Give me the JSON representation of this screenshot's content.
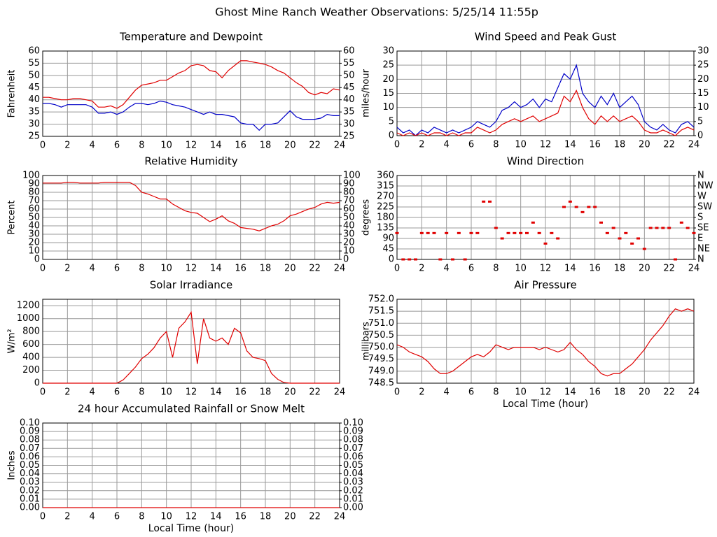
{
  "title": "Ghost Mine Ranch Weather Observations: 5/25/14 11:55p",
  "chart_data": [
    {
      "type": "line",
      "title": "Temperature and Dewpoint",
      "ylabel": "Fahrenheit",
      "x": [
        0,
        0.5,
        1,
        1.5,
        2,
        2.5,
        3,
        3.5,
        4,
        4.5,
        5,
        5.5,
        6,
        6.5,
        7,
        7.5,
        8,
        8.5,
        9,
        9.5,
        10,
        10.5,
        11,
        11.5,
        12,
        12.5,
        13,
        13.5,
        14,
        14.5,
        15,
        15.5,
        16,
        16.5,
        17,
        17.5,
        18,
        18.5,
        19,
        19.5,
        20,
        20.5,
        21,
        21.5,
        22,
        22.5,
        23,
        23.5,
        24
      ],
      "series": [
        {
          "color": "#e00000",
          "values": [
            41,
            41,
            40.5,
            40,
            40,
            40.5,
            40.5,
            40,
            39.5,
            37,
            37,
            37.5,
            36.5,
            38,
            41,
            44,
            46,
            46.5,
            47,
            48,
            48,
            49.5,
            51,
            52,
            54,
            54.5,
            54,
            52,
            51.5,
            49,
            52,
            54,
            56,
            56,
            55.5,
            55,
            54.5,
            53.5,
            52,
            51,
            49,
            47,
            45.5,
            43,
            42,
            43,
            42.5,
            44.5,
            44
          ]
        },
        {
          "color": "#0000c8",
          "values": [
            38.5,
            38.5,
            38,
            37,
            38,
            38,
            38,
            38,
            37,
            34.5,
            34.5,
            35,
            34,
            35,
            37,
            38.5,
            38.5,
            38,
            38.5,
            39.5,
            39,
            38,
            37.5,
            37,
            36,
            35,
            34,
            35,
            34,
            34,
            33.5,
            33,
            30.5,
            30,
            30,
            27.5,
            30,
            30,
            30.5,
            33,
            35.5,
            33,
            32,
            32,
            32,
            32.5,
            34,
            33.5,
            33.5
          ]
        }
      ],
      "xlim": [
        0,
        24
      ],
      "xticks": [
        0,
        2,
        4,
        6,
        8,
        10,
        12,
        14,
        16,
        18,
        20,
        22,
        24
      ],
      "ylim": [
        25,
        60
      ],
      "yticks": [
        25,
        30,
        35,
        40,
        45,
        50,
        55,
        60
      ],
      "y2lim": [
        25,
        60
      ],
      "y2ticks": [
        25,
        30,
        35,
        40,
        45,
        50,
        55,
        60
      ],
      "grid": true
    },
    {
      "type": "line",
      "title": "Wind Speed and Peak Gust",
      "ylabel": "miles/hour",
      "x": [
        0,
        0.5,
        1,
        1.5,
        2,
        2.5,
        3,
        3.5,
        4,
        4.5,
        5,
        5.5,
        6,
        6.5,
        7,
        7.5,
        8,
        8.5,
        9,
        9.5,
        10,
        10.5,
        11,
        11.5,
        12,
        12.5,
        13,
        13.5,
        14,
        14.5,
        15,
        15.5,
        16,
        16.5,
        17,
        17.5,
        18,
        18.5,
        19,
        19.5,
        20,
        20.5,
        21,
        21.5,
        22,
        22.5,
        23,
        23.5,
        24
      ],
      "series": [
        {
          "color": "#0000c8",
          "values": [
            3,
            1,
            2,
            0,
            2,
            1,
            3,
            2,
            1,
            2,
            1,
            2,
            3,
            5,
            4,
            3,
            5,
            9,
            10,
            12,
            10,
            11,
            13,
            10,
            13,
            12,
            17,
            22,
            20,
            25,
            15,
            12,
            10,
            14,
            11,
            15,
            10,
            12,
            14,
            11,
            5,
            3,
            2,
            4,
            2,
            1,
            4,
            5,
            3
          ]
        },
        {
          "color": "#e00000",
          "values": [
            1,
            0,
            1,
            0,
            1,
            0,
            1,
            1,
            0,
            1,
            0,
            1,
            1,
            3,
            2,
            1,
            2,
            4,
            5,
            6,
            5,
            6,
            7,
            5,
            6,
            7,
            8,
            14,
            12,
            16,
            10,
            6,
            4,
            7,
            5,
            7,
            5,
            6,
            7,
            5,
            2,
            1,
            1,
            2,
            1,
            0,
            2,
            3,
            2
          ]
        }
      ],
      "xlim": [
        0,
        24
      ],
      "xticks": [
        0,
        2,
        4,
        6,
        8,
        10,
        12,
        14,
        16,
        18,
        20,
        22,
        24
      ],
      "ylim": [
        0,
        30
      ],
      "yticks": [
        0,
        5,
        10,
        15,
        20,
        25,
        30
      ],
      "y2lim": [
        0,
        30
      ],
      "y2ticks": [
        0,
        5,
        10,
        15,
        20,
        25,
        30
      ],
      "grid": true
    },
    {
      "type": "line",
      "title": "Relative Humidity",
      "ylabel": "Percent",
      "x": [
        0,
        0.5,
        1,
        1.5,
        2,
        2.5,
        3,
        3.5,
        4,
        4.5,
        5,
        5.5,
        6,
        6.5,
        7,
        7.5,
        8,
        8.5,
        9,
        9.5,
        10,
        10.5,
        11,
        11.5,
        12,
        12.5,
        13,
        13.5,
        14,
        14.5,
        15,
        15.5,
        16,
        16.5,
        17,
        17.5,
        18,
        18.5,
        19,
        19.5,
        20,
        20.5,
        21,
        21.5,
        22,
        22.5,
        23,
        23.5,
        24
      ],
      "series": [
        {
          "color": "#e00000",
          "values": [
            91,
            91,
            91,
            91,
            92,
            92,
            91,
            91,
            91,
            91,
            92,
            92,
            92,
            92,
            92,
            88,
            80,
            78,
            75,
            72,
            72,
            66,
            62,
            58,
            56,
            55,
            50,
            45,
            48,
            52,
            46,
            43,
            38,
            37,
            36,
            34,
            37,
            40,
            42,
            46,
            52,
            54,
            57,
            60,
            62,
            66,
            68,
            67,
            68
          ]
        }
      ],
      "xlim": [
        0,
        24
      ],
      "xticks": [
        0,
        2,
        4,
        6,
        8,
        10,
        12,
        14,
        16,
        18,
        20,
        22,
        24
      ],
      "ylim": [
        0,
        100
      ],
      "yticks": [
        0,
        10,
        20,
        30,
        40,
        50,
        60,
        70,
        80,
        90,
        100
      ],
      "y2lim": [
        0,
        100
      ],
      "y2ticks": [
        0,
        10,
        20,
        30,
        40,
        50,
        60,
        70,
        80,
        90,
        100
      ],
      "grid": true
    },
    {
      "type": "scatter",
      "title": "Wind Direction",
      "ylabel": "degrees",
      "x": [
        0,
        0.5,
        1,
        1.5,
        2,
        2.5,
        3,
        3.5,
        4,
        4.5,
        5,
        5.5,
        6,
        6.5,
        7,
        7.5,
        8,
        8.5,
        9,
        9.5,
        10,
        10.5,
        11,
        11.5,
        12,
        12.5,
        13,
        13.5,
        14,
        14.5,
        15,
        15.5,
        16,
        16.5,
        17,
        17.5,
        18,
        18.5,
        19,
        19.5,
        20,
        20.5,
        21,
        21.5,
        22,
        22.5,
        23,
        23.5,
        24
      ],
      "series": [
        {
          "color": "#e00000",
          "values": [
            113,
            0,
            0,
            0,
            113,
            113,
            113,
            0,
            113,
            0,
            113,
            0,
            113,
            113,
            248,
            248,
            135,
            90,
            113,
            113,
            113,
            113,
            158,
            113,
            68,
            113,
            90,
            225,
            248,
            225,
            203,
            225,
            225,
            158,
            113,
            135,
            90,
            113,
            68,
            90,
            45,
            135,
            135,
            135,
            135,
            0,
            158,
            135,
            113
          ]
        }
      ],
      "xlim": [
        0,
        24
      ],
      "xticks": [
        0,
        2,
        4,
        6,
        8,
        10,
        12,
        14,
        16,
        18,
        20,
        22,
        24
      ],
      "ylim": [
        0,
        360
      ],
      "yticks": [
        0,
        45,
        90,
        135,
        180,
        225,
        270,
        315,
        360
      ],
      "y2lim": [
        0,
        360
      ],
      "y2ticks": [
        {
          "value": 0,
          "label": "N"
        },
        {
          "value": 45,
          "label": "NE"
        },
        {
          "value": 90,
          "label": "E"
        },
        {
          "value": 135,
          "label": "SE"
        },
        {
          "value": 180,
          "label": "S"
        },
        {
          "value": 225,
          "label": "SW"
        },
        {
          "value": 270,
          "label": "W"
        },
        {
          "value": 315,
          "label": "NW"
        },
        {
          "value": 360,
          "label": "N"
        }
      ],
      "grid": true
    },
    {
      "type": "line",
      "title": "Solar Irradiance",
      "ylabel": "W/m²",
      "x": [
        0,
        0.5,
        1,
        1.5,
        2,
        2.5,
        3,
        3.5,
        4,
        4.5,
        5,
        5.5,
        6,
        6.5,
        7,
        7.5,
        8,
        8.5,
        9,
        9.5,
        10,
        10.5,
        11,
        11.5,
        12,
        12.5,
        13,
        13.5,
        14,
        14.5,
        15,
        15.5,
        16,
        16.5,
        17,
        17.5,
        18,
        18.5,
        19,
        19.5,
        20,
        20.5,
        21,
        21.5,
        22,
        22.5,
        23,
        23.5,
        24
      ],
      "series": [
        {
          "color": "#e00000",
          "values": [
            0,
            0,
            0,
            0,
            0,
            0,
            0,
            0,
            0,
            0,
            0,
            0,
            0,
            50,
            150,
            250,
            380,
            450,
            550,
            700,
            800,
            400,
            850,
            950,
            1100,
            300,
            1000,
            700,
            650,
            700,
            600,
            850,
            780,
            500,
            400,
            380,
            350,
            150,
            60,
            10,
            0,
            0,
            0,
            0,
            0,
            0,
            0,
            0,
            0
          ]
        }
      ],
      "xlim": [
        0,
        24
      ],
      "xticks": [
        0,
        2,
        4,
        6,
        8,
        10,
        12,
        14,
        16,
        18,
        20,
        22,
        24
      ],
      "ylim": [
        0,
        1300
      ],
      "yticks": [
        0,
        200,
        400,
        600,
        800,
        1000,
        1200
      ],
      "grid": true
    },
    {
      "type": "line",
      "title": "Air Pressure",
      "ylabel": "millibars",
      "xlabel": "Local Time (hour)",
      "x": [
        0,
        0.5,
        1,
        1.5,
        2,
        2.5,
        3,
        3.5,
        4,
        4.5,
        5,
        5.5,
        6,
        6.5,
        7,
        7.5,
        8,
        8.5,
        9,
        9.5,
        10,
        10.5,
        11,
        11.5,
        12,
        12.5,
        13,
        13.5,
        14,
        14.5,
        15,
        15.5,
        16,
        16.5,
        17,
        17.5,
        18,
        18.5,
        19,
        19.5,
        20,
        20.5,
        21,
        21.5,
        22,
        22.5,
        23,
        23.5,
        24
      ],
      "series": [
        {
          "color": "#e00000",
          "values": [
            750.1,
            750.0,
            749.8,
            749.7,
            749.6,
            749.4,
            749.1,
            748.9,
            748.9,
            749.0,
            749.2,
            749.4,
            749.6,
            749.7,
            749.6,
            749.8,
            750.1,
            750.0,
            749.9,
            750.0,
            750.0,
            750.0,
            750.0,
            749.9,
            750.0,
            749.9,
            749.8,
            749.9,
            750.2,
            749.9,
            749.7,
            749.4,
            749.2,
            748.9,
            748.8,
            748.9,
            748.9,
            749.1,
            749.3,
            749.6,
            749.9,
            750.3,
            750.6,
            750.9,
            751.3,
            751.6,
            751.5,
            751.6,
            751.5
          ]
        }
      ],
      "xlim": [
        0,
        24
      ],
      "xticks": [
        0,
        2,
        4,
        6,
        8,
        10,
        12,
        14,
        16,
        18,
        20,
        22,
        24
      ],
      "ylim": [
        748.5,
        752
      ],
      "yticks": [
        748.5,
        {
          "value": 749,
          "label": "749.0"
        },
        749.5,
        {
          "value": 750,
          "label": "750.0"
        },
        750.5,
        {
          "value": 751,
          "label": "751.0"
        },
        751.5,
        {
          "value": 752,
          "label": "752.0"
        }
      ],
      "grid": true
    },
    {
      "type": "line",
      "title": "24 hour Accumulated Rainfall or Snow Melt",
      "ylabel": "Inches",
      "xlabel": "Local Time (hour)",
      "x": [
        0,
        24
      ],
      "series": [
        {
          "color": "#e00000",
          "values": [
            0,
            0
          ]
        }
      ],
      "xlim": [
        0,
        24
      ],
      "xticks": [
        0,
        2,
        4,
        6,
        8,
        10,
        12,
        14,
        16,
        18,
        20,
        22,
        24
      ],
      "ylim": [
        0,
        0.1
      ],
      "yticks": [
        {
          "value": 0,
          "label": "0.00"
        },
        {
          "value": 0.01,
          "label": "0.01"
        },
        {
          "value": 0.02,
          "label": "0.02"
        },
        {
          "value": 0.03,
          "label": "0.03"
        },
        {
          "value": 0.04,
          "label": "0.04"
        },
        {
          "value": 0.05,
          "label": "0.05"
        },
        {
          "value": 0.06,
          "label": "0.06"
        },
        {
          "value": 0.07,
          "label": "0.07"
        },
        {
          "value": 0.08,
          "label": "0.08"
        },
        {
          "value": 0.09,
          "label": "0.09"
        },
        {
          "value": 0.1,
          "label": "0.10"
        }
      ],
      "y2lim": [
        0,
        0.1
      ],
      "y2ticks": [
        {
          "value": 0,
          "label": "0.00"
        },
        {
          "value": 0.01,
          "label": "0.01"
        },
        {
          "value": 0.02,
          "label": "0.02"
        },
        {
          "value": 0.03,
          "label": "0.03"
        },
        {
          "value": 0.04,
          "label": "0.04"
        },
        {
          "value": 0.05,
          "label": "0.05"
        },
        {
          "value": 0.06,
          "label": "0.06"
        },
        {
          "value": 0.07,
          "label": "0.07"
        },
        {
          "value": 0.08,
          "label": "0.08"
        },
        {
          "value": 0.09,
          "label": "0.09"
        },
        {
          "value": 0.1,
          "label": "0.10"
        }
      ],
      "grid": true
    }
  ]
}
